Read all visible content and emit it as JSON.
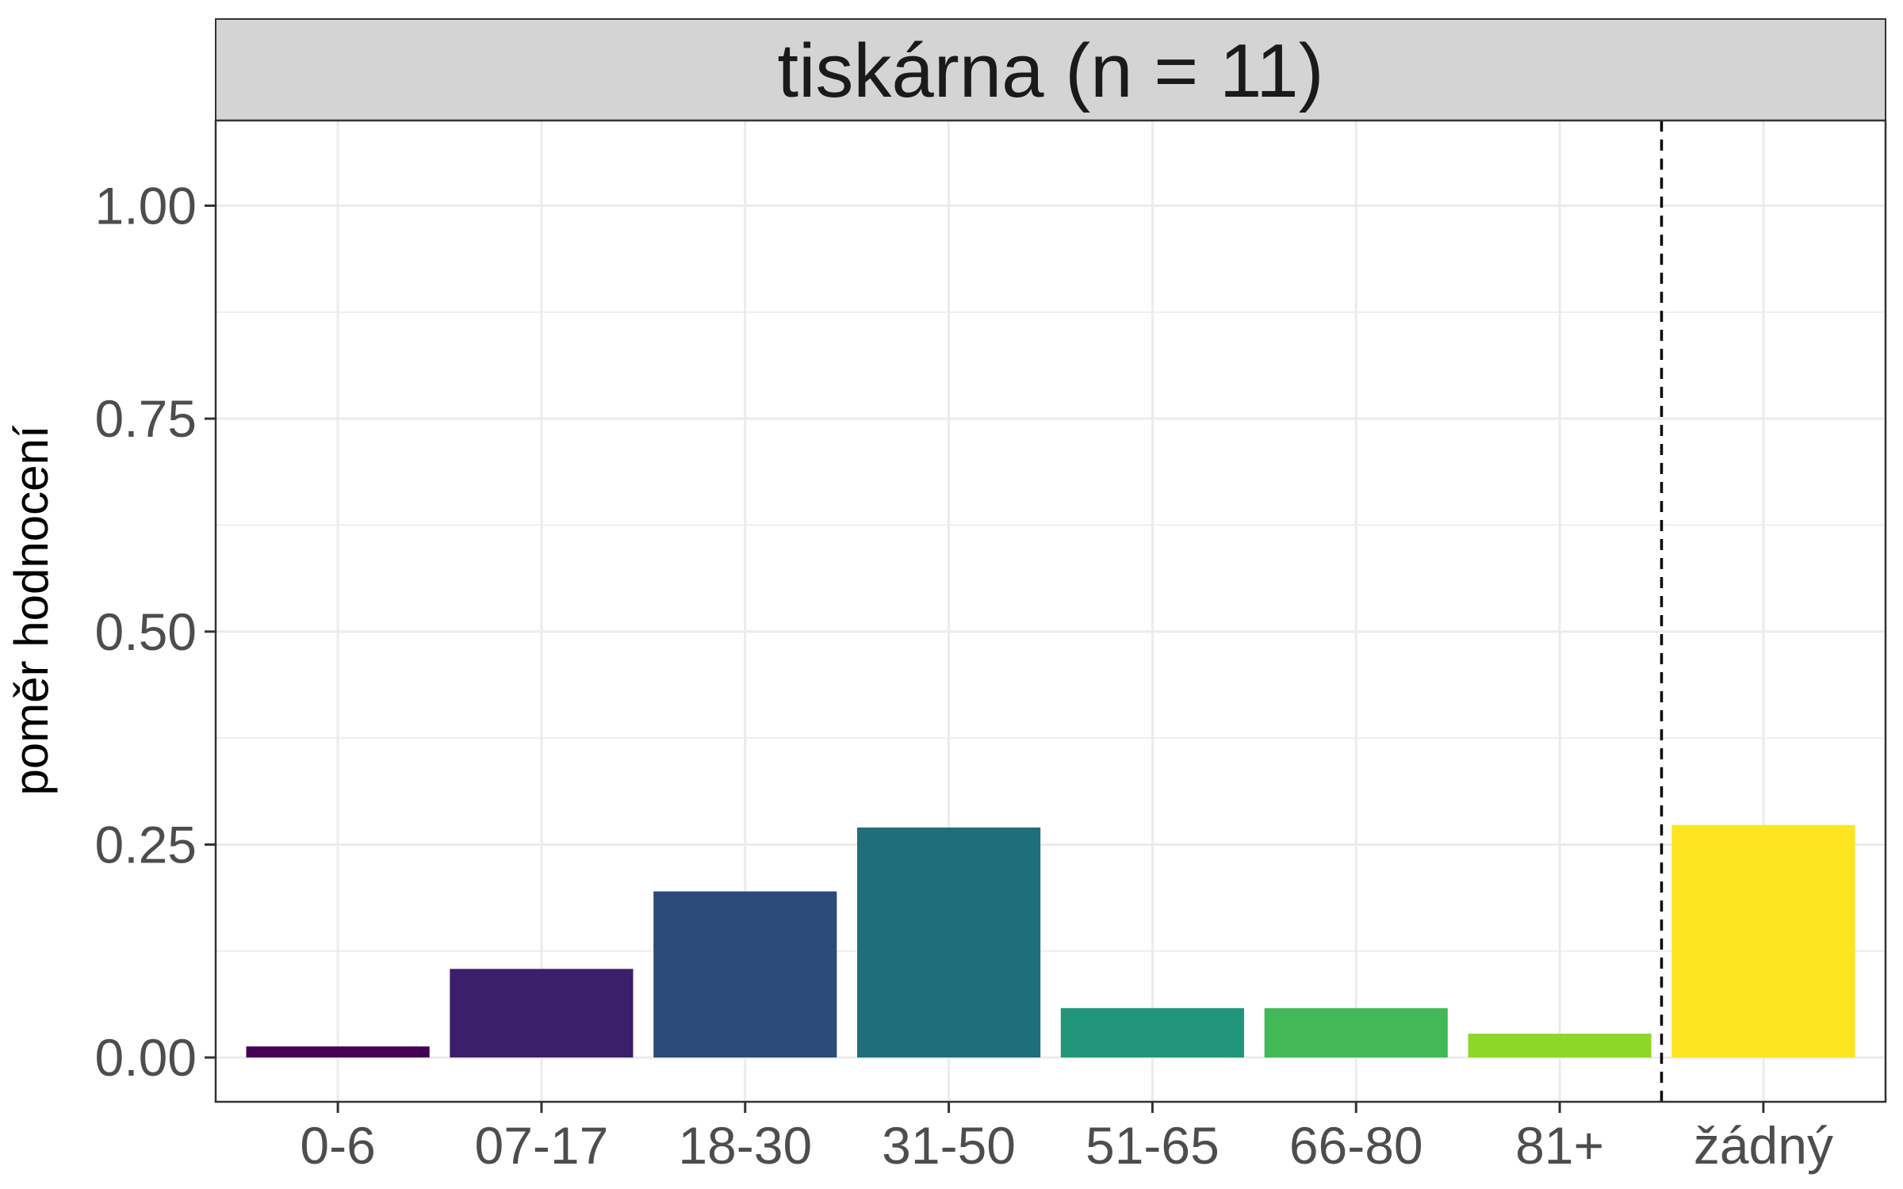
{
  "chart_data": {
    "type": "bar",
    "title": "tiskárna (n = 11)",
    "xlabel": "",
    "ylabel": "poměr hodnocení",
    "categories": [
      "0-6",
      "07-17",
      "18-30",
      "31-50",
      "51-65",
      "66-80",
      "81+",
      "žádný"
    ],
    "values": [
      0.013,
      0.104,
      0.195,
      0.27,
      0.058,
      0.058,
      0.028,
      0.273
    ],
    "colors": [
      "#440154",
      "#3b1f6b",
      "#2c4a7a",
      "#206e7a",
      "#20957a",
      "#42b857",
      "#8fd62a",
      "#fde51f"
    ],
    "ylim": [
      -0.052,
      1.1
    ],
    "yticks": [
      "0.00",
      "0.25",
      "0.50",
      "0.75",
      "1.00"
    ],
    "ytick_values": [
      0,
      0.25,
      0.5,
      0.75,
      1.0
    ],
    "grid": true,
    "separator_after": "81+",
    "separator_style": "dashed"
  }
}
